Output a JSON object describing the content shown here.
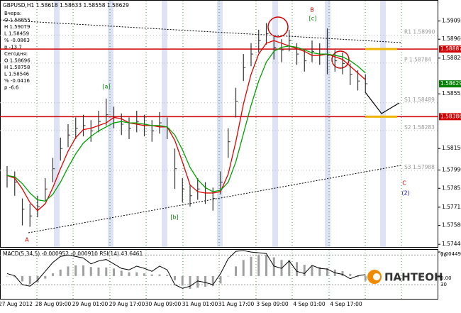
{
  "chart_data": [
    {
      "type": "ohlc",
      "title": "GBPUSD,H1  1.58618 1.58633 1.58558 1.58629",
      "info": [
        "Вчера:",
        "O 1.58855",
        "H 1.59079",
        "L 1.58459",
        "% -0.0863",
        "p -13.7",
        "Сегодня:",
        "O 1.58696",
        "H 1.58758",
        "L 1.58546",
        "% -0.0416",
        "p -6.6"
      ],
      "x_labels": [
        "27 Aug 2012",
        "28 Aug 09:00",
        "29 Aug 01:00",
        "29 Aug 17:00",
        "30 Aug 09:00",
        "31 Aug 01:00",
        "31 Aug 17:00",
        "3 Sep 09:00",
        "4 Sep 01:00",
        "4 Sep 17:00"
      ],
      "high": [
        1.5802,
        1.5798,
        1.5778,
        1.5774,
        1.578,
        1.5793,
        1.5808,
        1.5823,
        1.5833,
        1.5838,
        1.584,
        1.5836,
        1.5843,
        1.5852,
        1.5846,
        1.5841,
        1.5838,
        1.5843,
        1.584,
        1.5836,
        1.5842,
        1.5838,
        1.5815,
        1.5793,
        1.5788,
        1.5793,
        1.579,
        1.5786,
        1.5798,
        1.583,
        1.586,
        1.5885,
        1.5893,
        1.5903,
        1.5908,
        1.5898,
        1.5896,
        1.5903,
        1.5893,
        1.5888,
        1.5895,
        1.5893,
        1.5904,
        1.5888,
        1.5886,
        1.5878,
        1.5873,
        1.587
      ],
      "low": [
        1.5786,
        1.578,
        1.5758,
        1.5757,
        1.5764,
        1.5776,
        1.579,
        1.5806,
        1.5816,
        1.5822,
        1.5824,
        1.582,
        1.5827,
        1.5832,
        1.583,
        1.5825,
        1.5822,
        1.5827,
        1.5824,
        1.582,
        1.5826,
        1.5822,
        1.5785,
        1.5775,
        1.5772,
        1.5777,
        1.5774,
        1.5769,
        1.5781,
        1.5808,
        1.5838,
        1.5865,
        1.5876,
        1.5886,
        1.5892,
        1.5881,
        1.5879,
        1.5887,
        1.5877,
        1.5872,
        1.5879,
        1.5877,
        1.587,
        1.5872,
        1.587,
        1.5862,
        1.5858,
        1.5856
      ],
      "close": [
        1.5795,
        1.579,
        1.577,
        1.5765,
        1.5772,
        1.5785,
        1.58,
        1.5815,
        1.5825,
        1.583,
        1.5832,
        1.5828,
        1.5835,
        1.584,
        1.5838,
        1.5833,
        1.583,
        1.5835,
        1.5832,
        1.5828,
        1.5834,
        1.583,
        1.58,
        1.5785,
        1.578,
        1.5785,
        1.5782,
        1.5778,
        1.579,
        1.582,
        1.585,
        1.5875,
        1.5885,
        1.5895,
        1.59,
        1.589,
        1.5888,
        1.5895,
        1.5885,
        1.588,
        1.5887,
        1.5885,
        1.5884,
        1.588,
        1.5878,
        1.587,
        1.5865,
        1.5863
      ],
      "series": [
        {
          "color": "#e00000",
          "values": [
            1.5795,
            1.5793,
            1.5785,
            1.5775,
            1.5769,
            1.5774,
            1.5786,
            1.58,
            1.5813,
            1.5823,
            1.5829,
            1.583,
            1.5832,
            1.5834,
            1.5838,
            1.5837,
            1.5834,
            1.5833,
            1.5832,
            1.5832,
            1.5831,
            1.5831,
            1.5821,
            1.5805,
            1.5788,
            1.5783,
            1.5782,
            1.5782,
            1.5783,
            1.5796,
            1.582,
            1.5848,
            1.587,
            1.5885,
            1.5893,
            1.5895,
            1.5893,
            1.5891,
            1.5889,
            1.5887,
            1.5884,
            1.5884,
            1.5885,
            1.5883,
            1.5881,
            1.5876,
            1.5871,
            1.5866
          ]
        },
        {
          "color": "#00a000",
          "values": [
            1.5795,
            1.5794,
            1.5789,
            1.5782,
            1.5777,
            1.5776,
            1.5781,
            1.579,
            1.5801,
            1.5811,
            1.5819,
            1.5824,
            1.5828,
            1.5831,
            1.5834,
            1.5835,
            1.5834,
            1.5834,
            1.5833,
            1.5832,
            1.5832,
            1.5831,
            1.5825,
            1.5814,
            1.5801,
            1.5792,
            1.5786,
            1.5783,
            1.5784,
            1.579,
            1.5805,
            1.5826,
            1.5847,
            1.5865,
            1.5879,
            1.5887,
            1.589,
            1.5891,
            1.589,
            1.5888,
            1.5886,
            1.5885,
            1.5885,
            1.5884,
            1.5883,
            1.588,
            1.5876,
            1.5871
          ]
        }
      ],
      "ylim": [
        1.5742,
        1.5924
      ],
      "yticks": [
        1.59095,
        {
          "value": 1.5896,
          "label": "1.58960"
        },
        {
          "value": 1.5882,
          "label": "1.58820"
        },
        1.58555,
        {
          "value": 1.5815,
          "label": "1.58150"
        },
        {
          "value": 1.5799,
          "label": "1.57990"
        },
        1.57855,
        1.57715,
        {
          "value": 1.5758,
          "label": "1.57580"
        },
        {
          "value": 1.5744,
          "label": "1.57440"
        }
      ],
      "hlines": [
        {
          "value": 1.58887,
          "color": "#d00000"
        },
        {
          "value": 1.58386,
          "color": "#d00000"
        }
      ],
      "last_price": 1.58629,
      "pivots": [
        {
          "name": "R1",
          "value": 1.5899,
          "label": "1.58990"
        },
        {
          "name": "P",
          "value": 1.58784,
          "label": "1.58784"
        },
        {
          "name": "S1",
          "value": 1.58489,
          "label": "1.58489"
        },
        {
          "name": "S2",
          "value": 1.58283,
          "label": "1.58283"
        },
        {
          "name": "S3",
          "value": 1.57988,
          "label": "1.57988"
        }
      ],
      "waves": [
        {
          "text": "A",
          "color": "#d00000"
        },
        {
          "text": "[a]",
          "color": "#008000"
        },
        {
          "text": "[b]",
          "color": "#008000"
        },
        {
          "text": "B",
          "color": "#d00000"
        },
        {
          "text": "[c]",
          "color": "#008000"
        },
        {
          "text": "C",
          "color": "#d00000"
        },
        {
          "text": "(2)",
          "color": "#0000d0"
        }
      ]
    },
    {
      "type": "macd",
      "title": "MACD(5,34,5) -0.000952 -0.000910  RSI(14) 43.6461",
      "values": [
        0,
        -0.0002,
        -0.001,
        -0.0015,
        -0.0012,
        -0.0005,
        0.0005,
        0.0012,
        0.0018,
        0.002,
        0.002,
        0.0017,
        0.0016,
        0.0016,
        0.0014,
        0.001,
        0.0007,
        0.0007,
        0.0005,
        0.0003,
        0.0003,
        0.0002,
        -0.0008,
        -0.0018,
        -0.0024,
        -0.0022,
        -0.002,
        -0.0019,
        -0.0014,
        0.0,
        0.0018,
        0.003,
        0.0036,
        0.004,
        0.004,
        0.0035,
        0.003,
        0.003,
        0.0026,
        0.0021,
        0.002,
        0.0017,
        0.0015,
        0.0012,
        0.0009,
        0.0004,
        -0.0002,
        -0.0009
      ],
      "color": "#a0a0a0",
      "ylim": [
        -0.0044,
        0.0049
      ],
      "yticks": [
        0.004493,
        {
          "value": 0,
          "label": "0.00"
        }
      ],
      "rsi": [
        45,
        42,
        30,
        28,
        36,
        48,
        60,
        68,
        70,
        68,
        66,
        58,
        62,
        64,
        58,
        52,
        50,
        55,
        52,
        48,
        55,
        50,
        30,
        25,
        28,
        35,
        33,
        30,
        45,
        65,
        75,
        76,
        74,
        73,
        72,
        55,
        52,
        62,
        48,
        45,
        56,
        52,
        51,
        46,
        44,
        38,
        42,
        43.6461
      ],
      "rsi_ylim": [
        10,
        77
      ],
      "rsi_yticks": [
        70,
        30
      ],
      "logo": "ПАНТЕОН"
    }
  ]
}
